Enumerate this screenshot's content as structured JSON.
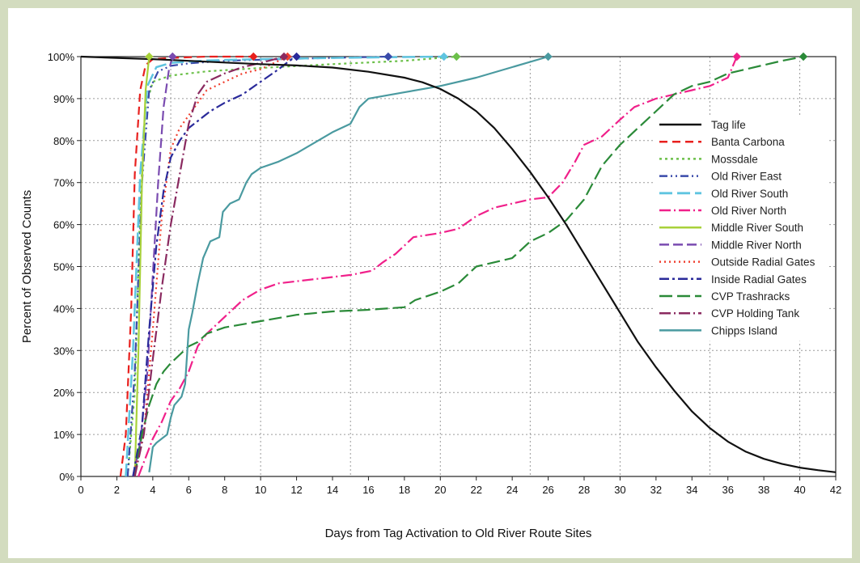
{
  "chart_data": {
    "type": "line",
    "title": "",
    "xlabel": "Days from Tag Activation to Old River Route Sites",
    "ylabel": "Percent of Observed Counts",
    "xlim": [
      0,
      42
    ],
    "ylim": [
      0,
      100
    ],
    "xticks": [
      0,
      2,
      4,
      6,
      8,
      10,
      12,
      14,
      16,
      18,
      20,
      22,
      24,
      26,
      28,
      30,
      32,
      34,
      36,
      38,
      40,
      42
    ],
    "yticks": [
      0,
      10,
      20,
      30,
      40,
      50,
      60,
      70,
      80,
      90,
      100
    ],
    "ytick_labels": [
      "0%",
      "10%",
      "20%",
      "30%",
      "40%",
      "50%",
      "60%",
      "70%",
      "80%",
      "90%",
      "100%"
    ],
    "grid": "dotted",
    "legend_position": "right",
    "series": [
      {
        "name": "Tag life",
        "color": "#111111",
        "dash": "solid",
        "width": 2.2,
        "x": [
          0,
          2,
          4,
          6,
          8,
          10,
          12,
          14,
          16,
          18,
          19,
          20,
          21,
          22,
          23,
          24,
          25,
          26,
          27,
          28,
          29,
          30,
          31,
          32,
          33,
          34,
          35,
          36,
          37,
          38,
          39,
          40,
          41,
          42
        ],
        "y": [
          100,
          99.7,
          99.4,
          99.0,
          98.6,
          98.2,
          97.9,
          97.4,
          96.4,
          95.0,
          93.9,
          92.3,
          90.0,
          87.0,
          83.0,
          78.0,
          72.5,
          66.5,
          60.0,
          53.0,
          46.0,
          39.0,
          32.0,
          26.0,
          20.5,
          15.5,
          11.5,
          8.3,
          5.9,
          4.2,
          3.0,
          2.1,
          1.5,
          1.0
        ]
      },
      {
        "name": "Banta Carbona",
        "color": "#e8201e",
        "dash": "10,6",
        "width": 2.2,
        "x": [
          2.2,
          2.5,
          2.8,
          3.0,
          3.3,
          3.6,
          4.0,
          5,
          7,
          9.6
        ],
        "y": [
          0,
          10,
          40,
          72,
          92,
          98,
          99.4,
          99.7,
          100,
          100
        ],
        "end_marker": 9.6
      },
      {
        "name": "Mossdale",
        "color": "#6cc04a",
        "dash": "3,4",
        "width": 2.2,
        "x": [
          2.6,
          3.0,
          3.3,
          3.6,
          4.0,
          5.0,
          7.0,
          10.0,
          14.0,
          18.0,
          20.9
        ],
        "y": [
          0,
          20,
          65,
          88,
          94,
          95.5,
          96.5,
          97.3,
          98.2,
          99,
          100
        ],
        "end_marker": 20.9
      },
      {
        "name": "Old River East",
        "color": "#3a4aaa",
        "dash": "10,4,2,4,2,4",
        "width": 2.2,
        "x": [
          2.6,
          3.0,
          3.4,
          3.8,
          4.3,
          5.0,
          6.0,
          8.0,
          11.0,
          14.0,
          16.0,
          17.1
        ],
        "y": [
          0,
          25,
          70,
          92,
          96.5,
          97.8,
          98.4,
          99,
          99.4,
          99.7,
          99.9,
          100
        ],
        "end_marker": 17.1
      },
      {
        "name": "Old River South",
        "color": "#5fc4e0",
        "dash": "16,6",
        "width": 2.5,
        "x": [
          2.5,
          2.9,
          3.3,
          3.7,
          4.2,
          5.0,
          7.0,
          10.0,
          14.0,
          18.0,
          20.2
        ],
        "y": [
          0,
          30,
          72,
          93,
          97.5,
          98.5,
          99.1,
          99.4,
          99.7,
          99.9,
          100
        ],
        "end_marker": 20.2
      },
      {
        "name": "Old River North",
        "color": "#f0208a",
        "dash": "14,4,2,4",
        "width": 2.2,
        "x": [
          3.2,
          4.0,
          4.5,
          5.0,
          5.5,
          6.0,
          6.5,
          7.0,
          7.5,
          8.0,
          9.0,
          10.0,
          11.0,
          13.0,
          15.0,
          16.2,
          16.8,
          17.5,
          18.5,
          20.0,
          21.0,
          22.0,
          23.0,
          24.0,
          25.0,
          26.0,
          26.8,
          27.5,
          28.0,
          29.0,
          30.0,
          30.8,
          32.0,
          33.0,
          34.0,
          35.0,
          36.0,
          36.5
        ],
        "y": [
          0,
          9,
          13,
          18,
          21,
          25,
          31,
          34,
          36,
          38,
          42,
          44.5,
          46,
          47,
          48,
          49,
          51,
          53,
          57,
          58,
          59,
          62,
          64,
          65,
          66,
          66.5,
          70,
          75,
          79,
          81,
          85,
          88,
          90,
          91,
          92,
          93,
          95,
          100
        ],
        "end_marker": 36.5
      },
      {
        "name": "Middle River South",
        "color": "#a8d13a",
        "dash": "solid",
        "width": 2.2,
        "x": [
          3.0,
          3.2,
          3.4,
          3.6,
          3.8
        ],
        "y": [
          0,
          30,
          70,
          92,
          100
        ],
        "end_marker": 3.8
      },
      {
        "name": "Middle River North",
        "color": "#7a4bb0",
        "dash": "12,5",
        "width": 2.2,
        "x": [
          2.9,
          3.3,
          3.7,
          4.0,
          4.3,
          4.6,
          4.9,
          5.1
        ],
        "y": [
          0,
          8,
          25,
          48,
          70,
          88,
          97,
          100
        ],
        "end_marker": 5.1
      },
      {
        "name": "Outside Radial Gates",
        "color": "#f04030",
        "dash": "2,4",
        "width": 2.2,
        "x": [
          2.9,
          3.5,
          4.0,
          4.5,
          5.0,
          5.5,
          6.0,
          6.5,
          7.0,
          8.0,
          9.0,
          10.0,
          11.0,
          11.5
        ],
        "y": [
          0,
          10,
          35,
          62,
          78,
          83,
          86,
          89,
          92,
          94,
          96,
          97,
          99,
          100
        ],
        "end_marker": 11.5
      },
      {
        "name": "Inside Radial Gates",
        "color": "#2a2a9a",
        "dash": "12,4,3,4",
        "width": 2.2,
        "x": [
          2.9,
          3.4,
          3.8,
          4.2,
          4.6,
          5.0,
          5.5,
          6.0,
          6.6,
          7.2,
          8.0,
          9.0,
          10.0,
          11.0,
          11.6,
          12.0
        ],
        "y": [
          0,
          12,
          35,
          55,
          68,
          76,
          80,
          83,
          85,
          87,
          89,
          91,
          94,
          97,
          99,
          100
        ],
        "end_marker": 12.0
      },
      {
        "name": "CVP Trashracks",
        "color": "#2a8a38",
        "dash": "16,6",
        "width": 2.2,
        "x": [
          3.0,
          3.4,
          3.8,
          4.2,
          4.6,
          5.0,
          5.5,
          6.0,
          6.5,
          7.0,
          8.0,
          10.0,
          12.0,
          14.0,
          16.0,
          18.0,
          18.6,
          20.0,
          21.0,
          22.0,
          23.0,
          24.0,
          25.0,
          26.0,
          27.0,
          28.0,
          29.0,
          30.0,
          31.0,
          32.0,
          33.0,
          34.0,
          35.0,
          36.0,
          37.0,
          38.0,
          39.0,
          40.2
        ],
        "y": [
          0,
          10,
          17,
          22,
          25,
          27,
          29,
          31,
          32,
          34,
          35.5,
          37,
          38.5,
          39.3,
          39.7,
          40.3,
          42,
          44,
          46,
          50,
          51,
          52,
          56,
          58,
          61,
          66,
          74,
          79,
          83,
          87,
          91,
          93,
          94,
          96,
          97,
          98,
          99,
          100
        ],
        "end_marker": 40.2
      },
      {
        "name": "CVP Holding Tank",
        "color": "#8a2a60",
        "dash": "14,4,2,4",
        "width": 2.2,
        "x": [
          3.0,
          3.5,
          4.0,
          4.5,
          5.0,
          5.5,
          6.0,
          6.5,
          7.0,
          8.0,
          9.0,
          10.0,
          11.3
        ],
        "y": [
          0,
          10,
          28,
          45,
          60,
          72,
          84,
          91,
          94,
          96,
          97.5,
          98.5,
          100
        ],
        "end_marker": 11.3
      },
      {
        "name": "Chipps Island",
        "color": "#4a9aa0",
        "dash": "solid",
        "width": 2.2,
        "x": [
          3.8,
          4.0,
          4.2,
          4.5,
          4.8,
          5.0,
          5.2,
          5.4,
          5.6,
          5.8,
          6.0,
          6.2,
          6.5,
          6.8,
          7.2,
          7.7,
          7.9,
          8.3,
          8.8,
          9.2,
          9.5,
          10.0,
          11.0,
          12.0,
          13.0,
          14.0,
          15.0,
          15.5,
          16.0,
          18.0,
          20.0,
          22.0,
          24.0,
          26.0
        ],
        "y": [
          1,
          7,
          8,
          9,
          10,
          14,
          17,
          18,
          19,
          22,
          35,
          39,
          46,
          52,
          56,
          57,
          63,
          65,
          66,
          70,
          72,
          73.5,
          75,
          77,
          79.5,
          82,
          84,
          88,
          90,
          91.5,
          93,
          95,
          97.5,
          100
        ],
        "end_marker": 26.0
      }
    ]
  }
}
